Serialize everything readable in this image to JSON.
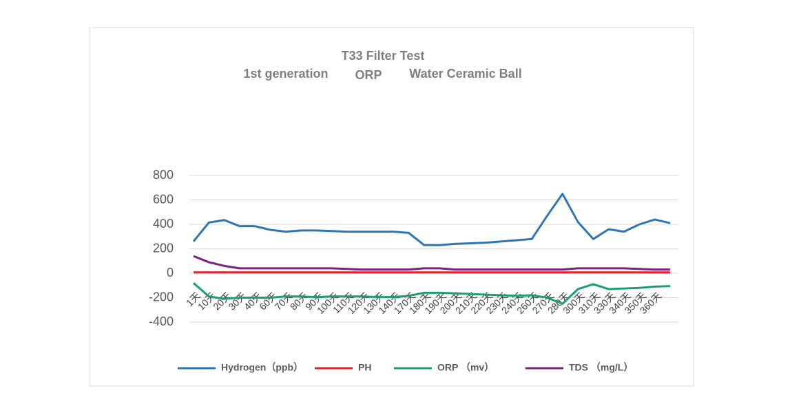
{
  "chart_data": {
    "type": "line",
    "title": "T33 Filter Test",
    "subtitle": [
      "1st generation",
      "ORP",
      "Water Ceramic Ball"
    ],
    "categories": [
      "1天",
      "10天",
      "20天",
      "30天",
      "40天",
      "60天",
      "70天",
      "80天",
      "90天",
      "100天",
      "110天",
      "120天",
      "130天",
      "140天",
      "170天",
      "180天",
      "190天",
      "200天",
      "210天",
      "220天",
      "230天",
      "240天",
      "260天",
      "270天",
      "280天",
      "300天",
      "310天",
      "330天",
      "340天",
      "350天",
      "360天",
      null
    ],
    "series": [
      {
        "name": "Hydrogen（ppb）",
        "color": "#2e75b6",
        "values": [
          260,
          415,
          435,
          385,
          385,
          355,
          340,
          350,
          350,
          345,
          340,
          340,
          340,
          340,
          330,
          230,
          230,
          240,
          245,
          250,
          260,
          270,
          280,
          470,
          650,
          420,
          280,
          360,
          340,
          400,
          440,
          410
        ]
      },
      {
        "name": "PH",
        "color": "#e8202a",
        "values": [
          7,
          7,
          7,
          7,
          7,
          7,
          7,
          7,
          7,
          7,
          7,
          7,
          7,
          7,
          7,
          7,
          7,
          7,
          7,
          7,
          7,
          7,
          7,
          7,
          7,
          7,
          7,
          7,
          7,
          7,
          7,
          7
        ]
      },
      {
        "name": "ORP （mv）",
        "color": "#1a9e77",
        "values": [
          -80,
          -190,
          -210,
          -200,
          -200,
          -200,
          -190,
          -190,
          -195,
          -190,
          -190,
          -190,
          -195,
          -195,
          -185,
          -160,
          -160,
          -165,
          -170,
          -175,
          -180,
          -185,
          -180,
          -200,
          -250,
          -130,
          -90,
          -130,
          -125,
          -120,
          -110,
          -105
        ]
      },
      {
        "name": "TDS （mg/L）",
        "color": "#7b1f80",
        "values": [
          140,
          90,
          60,
          40,
          40,
          40,
          40,
          40,
          40,
          40,
          35,
          30,
          30,
          30,
          30,
          40,
          40,
          30,
          30,
          30,
          30,
          30,
          30,
          30,
          30,
          40,
          40,
          40,
          40,
          35,
          30,
          30
        ]
      }
    ],
    "ylim": [
      -400,
      800
    ],
    "yticks": [
      -400,
      -200,
      0,
      200,
      400,
      600,
      800
    ],
    "grid": true,
    "legend": "bottom"
  }
}
